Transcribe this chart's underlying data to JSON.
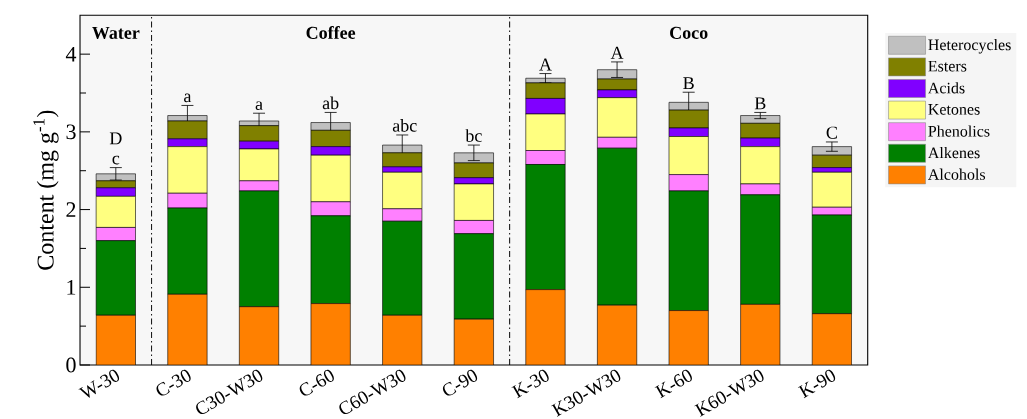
{
  "chart_data": {
    "type": "bar",
    "stacked": true,
    "ylabel": "Content (mg g$^{-1}$)",
    "categories": [
      "W-30",
      "C-30",
      "C30-W30",
      "C-60",
      "C60-W30",
      "C-90",
      "K-30",
      "K30-W30",
      "K-60",
      "K60-W30",
      "K-90"
    ],
    "series": [
      {
        "name": "Alcohols",
        "color": "#ff8000",
        "values": [
          0.64,
          0.91,
          0.75,
          0.79,
          0.64,
          0.59,
          0.97,
          0.77,
          0.7,
          0.78,
          0.66
        ]
      },
      {
        "name": "Alkenes",
        "color": "#008000",
        "values": [
          0.96,
          1.11,
          1.49,
          1.13,
          1.21,
          1.1,
          1.61,
          2.02,
          1.54,
          1.41,
          1.27
        ]
      },
      {
        "name": "Phenolics",
        "color": "#ff80ff",
        "values": [
          0.17,
          0.19,
          0.13,
          0.18,
          0.16,
          0.17,
          0.18,
          0.14,
          0.21,
          0.14,
          0.1
        ]
      },
      {
        "name": "Ketones",
        "color": "#ffff80",
        "values": [
          0.4,
          0.6,
          0.41,
          0.6,
          0.47,
          0.47,
          0.47,
          0.51,
          0.49,
          0.48,
          0.45
        ]
      },
      {
        "name": "Acids",
        "color": "#8000ff",
        "values": [
          0.11,
          0.1,
          0.1,
          0.11,
          0.07,
          0.08,
          0.2,
          0.1,
          0.11,
          0.11,
          0.06
        ]
      },
      {
        "name": "Esters",
        "color": "#808000",
        "values": [
          0.09,
          0.23,
          0.2,
          0.21,
          0.18,
          0.19,
          0.2,
          0.14,
          0.23,
          0.19,
          0.16
        ]
      },
      {
        "name": "Heterocycles",
        "color": "#c0c0c0",
        "values": [
          0.09,
          0.07,
          0.06,
          0.1,
          0.1,
          0.13,
          0.06,
          0.12,
          0.1,
          0.1,
          0.11
        ],
        "errors": [
          0.08,
          0.13,
          0.1,
          0.13,
          0.13,
          0.1,
          0.06,
          0.1,
          0.13,
          0.04,
          0.06
        ],
        "value_labels": [
          "D c",
          "a",
          "a",
          "ab",
          "abc",
          "bc",
          "A",
          "A",
          "B",
          "B",
          "C"
        ]
      }
    ],
    "ylim": [
      0,
      4.5
    ],
    "yticks": [
      0,
      {
        "value": 0.5,
        "label": null
      },
      1,
      {
        "value": 1.5,
        "label": null
      },
      2,
      {
        "value": 2.5,
        "label": null
      },
      3,
      {
        "value": 3.5,
        "label": null
      },
      4
    ],
    "annotations": [
      "Water",
      "Coffee",
      "Coco"
    ],
    "legend": "top right"
  }
}
